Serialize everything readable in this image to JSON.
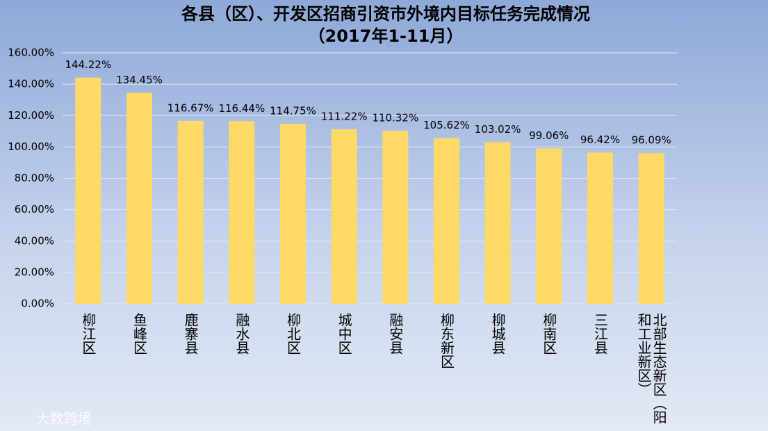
{
  "chart_data": {
    "type": "bar",
    "title": "各县（区）、开发区招商引资市外境内目标任务完成情况",
    "subtitle": "（2017年1-11月）",
    "categories": [
      "柳江区",
      "鱼峰区",
      "鹿寨县",
      "融水县",
      "柳北区",
      "城中区",
      "融安县",
      "柳东新区",
      "柳城县",
      "柳南区",
      "三江县",
      "北部生态新区（阳和工业新区）"
    ],
    "values": [
      144.22,
      134.45,
      116.67,
      116.44,
      114.75,
      111.22,
      110.32,
      105.62,
      103.02,
      99.06,
      96.42,
      96.09
    ],
    "value_labels": [
      "144.22%",
      "134.45%",
      "116.67%",
      "116.44%",
      "114.75%",
      "111.22%",
      "110.32%",
      "105.62%",
      "103.02%",
      "99.06%",
      "96.42%",
      "96.09%"
    ],
    "color": "#ffd966",
    "ylim": [
      0,
      160
    ],
    "yticks": [
      {
        "value": 0,
        "label": "0.00%"
      },
      {
        "value": 20,
        "label": "20.00%"
      },
      {
        "value": 40,
        "label": "40.00%"
      },
      {
        "value": 60,
        "label": "60.00%"
      },
      {
        "value": 80,
        "label": "80.00%"
      },
      {
        "value": 100,
        "label": "100.00%"
      },
      {
        "value": 120,
        "label": "120.00%"
      },
      {
        "value": 140,
        "label": "140.00%"
      },
      {
        "value": 160,
        "label": "160.00%"
      }
    ],
    "grid": true
  },
  "watermark": "大数跨境"
}
